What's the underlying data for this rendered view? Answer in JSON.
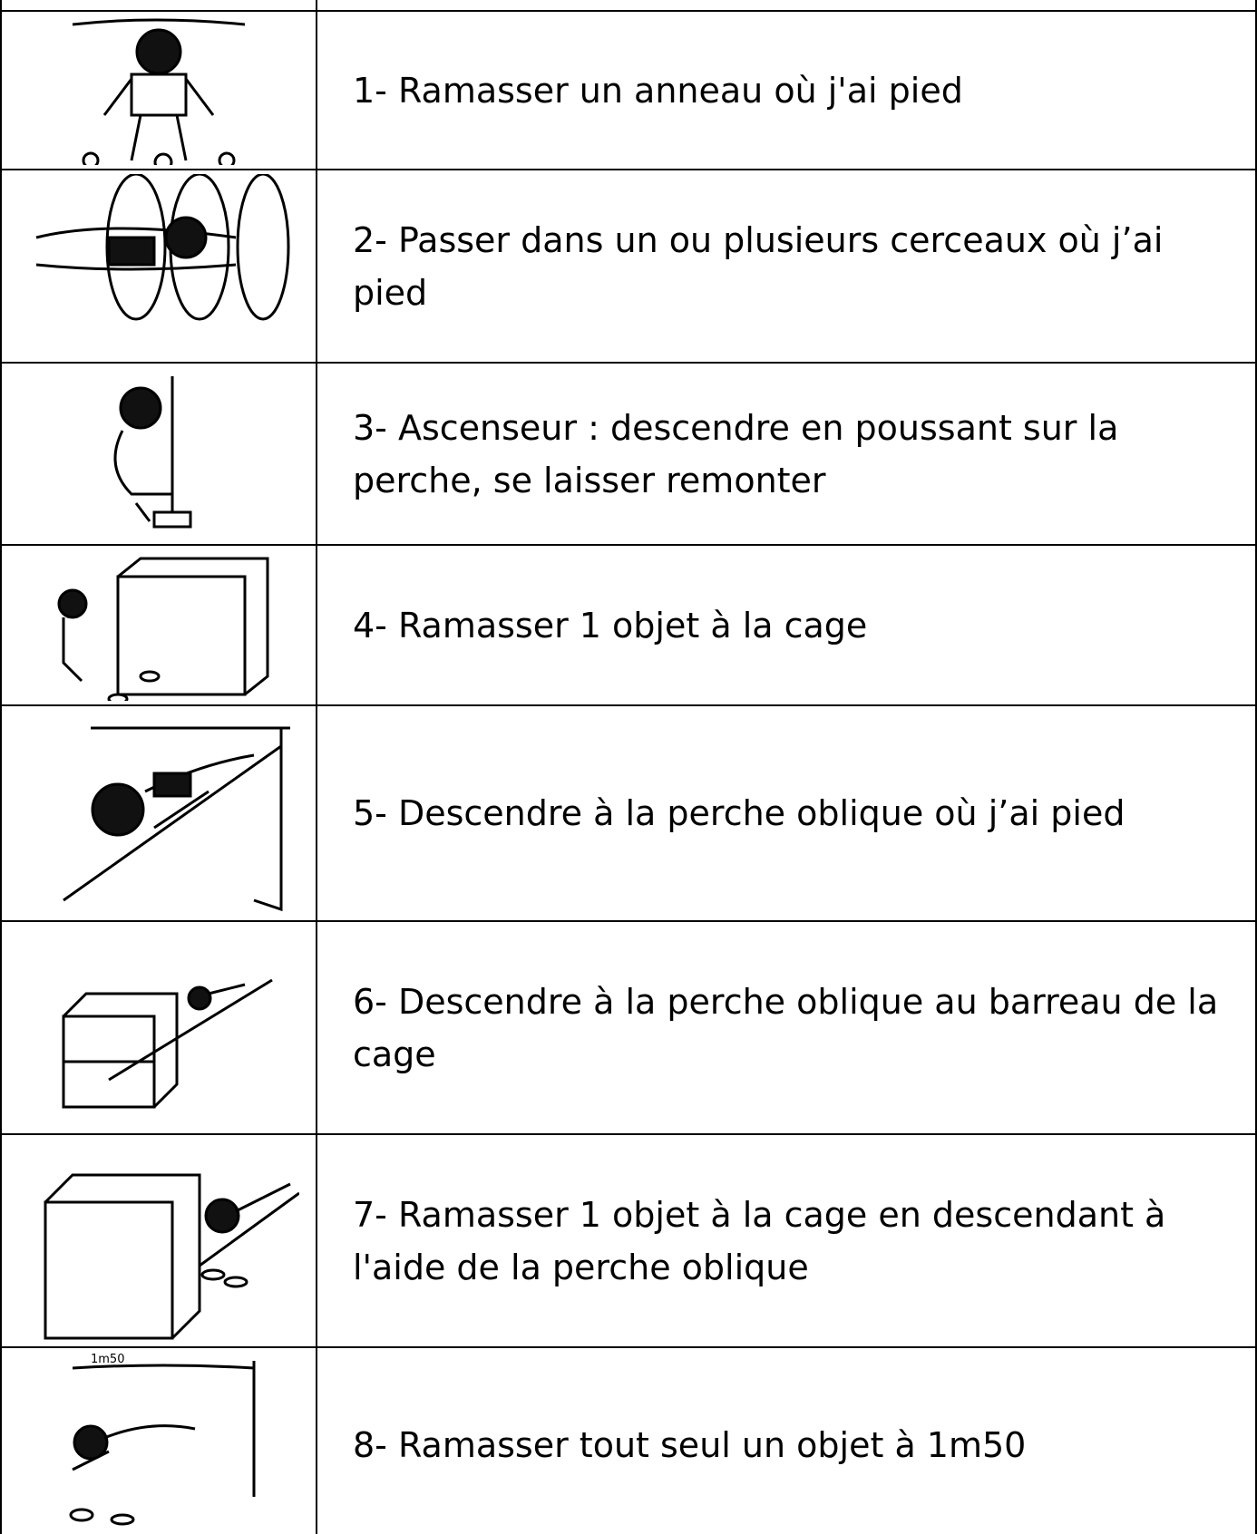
{
  "table": {
    "rows": [
      {
        "text": "1-  Ramasser un anneau où j'ai pied"
      },
      {
        "text": "2- Passer dans un ou plusieurs cerceaux où j’ai pied"
      },
      {
        "text": "3- Ascenseur : descendre en poussant sur la perche, se laisser remonter"
      },
      {
        "text": "4- Ramasser 1 objet à la cage"
      },
      {
        "text": "5- Descendre à la perche oblique où j’ai pied"
      },
      {
        "text": "6- Descendre à la perche oblique au barreau de la cage"
      },
      {
        "text": "7- Ramasser 1 objet à la cage en descendant à l'aide de la perche oblique"
      },
      {
        "text": "8- Ramasser tout seul un objet à 1m50",
        "image_text": "1m50"
      }
    ]
  }
}
